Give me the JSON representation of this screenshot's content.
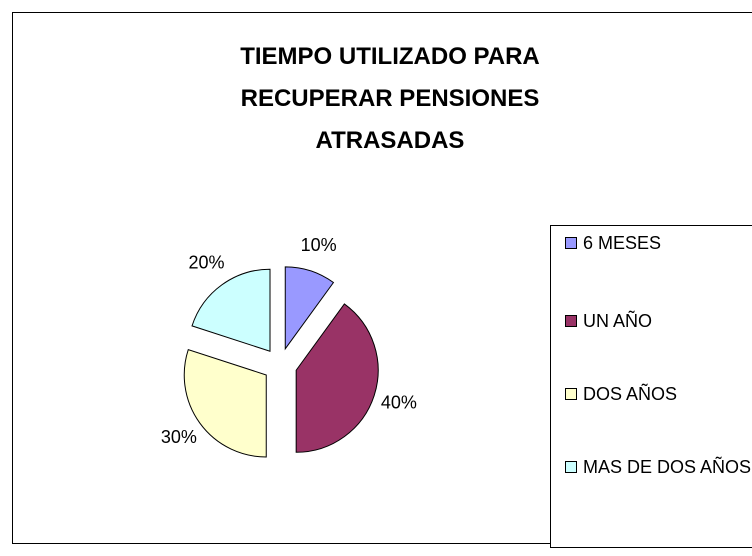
{
  "chart_data": {
    "type": "pie",
    "title": "TIEMPO UTILIZADO PARA RECUPERAR PENSIONES ATRASADAS",
    "categories": [
      "6 MESES",
      "UN AÑO",
      "DOS AÑOS",
      "MAS DE DOS AÑOS"
    ],
    "values": [
      10,
      40,
      30,
      20
    ],
    "value_labels": [
      "10%",
      "40%",
      "30%",
      "20%"
    ],
    "colors": [
      "#9999ff",
      "#993366",
      "#ffffcc",
      "#ccffff"
    ],
    "legend": "right"
  }
}
